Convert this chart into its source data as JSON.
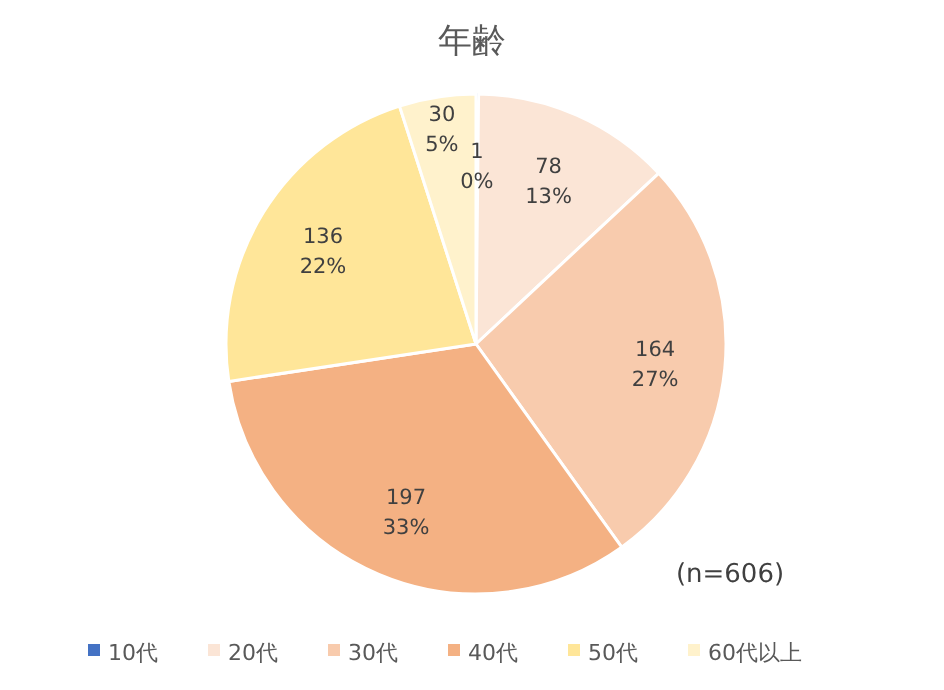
{
  "chart_data": {
    "type": "pie",
    "title": "年齢",
    "categories": [
      "10代",
      "20代",
      "30代",
      "40代",
      "50代",
      "60代以上"
    ],
    "values": [
      1,
      78,
      164,
      197,
      136,
      30
    ],
    "colors": [
      "#4472c4",
      "#fbe5d6",
      "#f8cbad",
      "#f4b183",
      "#ffe699",
      "#fff2cc"
    ],
    "value_labels": [
      "1\n0%",
      "78\n13%",
      "164\n27%",
      "197\n33%",
      "136\n22%",
      "30\n5%"
    ],
    "annotations": [
      "(n=606)"
    ],
    "legend": "bottom"
  }
}
